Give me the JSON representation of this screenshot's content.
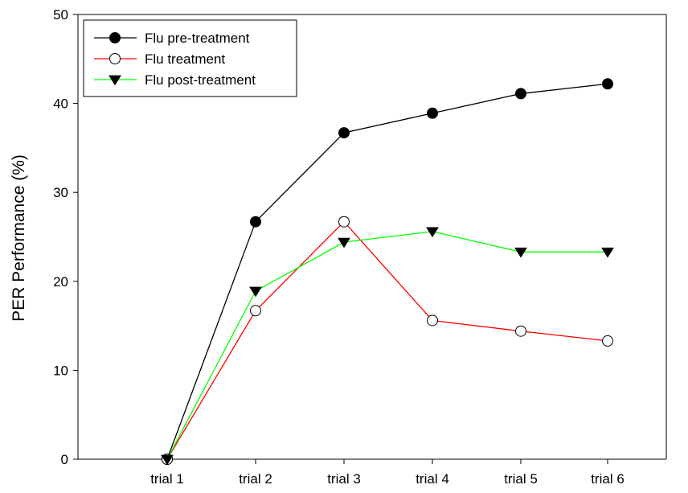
{
  "chart_data": {
    "type": "line",
    "categories": [
      "trial 1",
      "trial 2",
      "trial 3",
      "trial 4",
      "trial 5",
      "trial 6"
    ],
    "xlabel": "",
    "ylabel": "PER Performance (%)",
    "ylim": [
      0,
      50
    ],
    "yticks": [
      0,
      10,
      20,
      30,
      40,
      50
    ],
    "grid": false,
    "legend_position": "top-left",
    "series": [
      {
        "name": "Flu pre-treatment",
        "values": [
          0,
          26.7,
          36.7,
          38.9,
          41.1,
          42.2
        ],
        "color": "#000000",
        "marker": "filled-circle"
      },
      {
        "name": "Flu treatment",
        "values": [
          0,
          16.7,
          26.7,
          15.6,
          14.4,
          13.3
        ],
        "color": "#ff0000",
        "marker": "open-circle"
      },
      {
        "name": "Flu post-treatment",
        "values": [
          0,
          18.9,
          24.4,
          25.6,
          23.3,
          23.3
        ],
        "color": "#00ff00",
        "marker": "filled-triangle-down"
      }
    ]
  }
}
